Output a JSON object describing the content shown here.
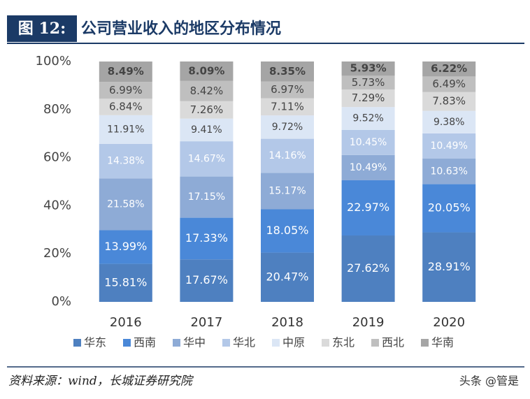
{
  "figure_label": "图 12:",
  "chart_data": {
    "type": "stacked_bar",
    "title": "公司营业收入的地区分布情况",
    "categories": [
      "2016",
      "2017",
      "2018",
      "2019",
      "2020"
    ],
    "series": [
      {
        "name": "华东",
        "color": "#4e80c0",
        "values": [
          15.81,
          17.67,
          20.47,
          27.62,
          28.91
        ],
        "value_labels": [
          "15.81%",
          "17.67%",
          "20.47%",
          "27.62%",
          "28.91%"
        ]
      },
      {
        "name": "西南",
        "color": "#4a88d8",
        "values": [
          13.99,
          17.33,
          18.05,
          22.97,
          20.05
        ],
        "value_labels": [
          "13.99%",
          "17.33%",
          "18.05%",
          "22.97%",
          "20.05%"
        ]
      },
      {
        "name": "华中",
        "color": "#8eabd6",
        "values": [
          21.58,
          17.15,
          15.17,
          10.49,
          10.63
        ],
        "value_labels": [
          "21.58%",
          "17.15%",
          "15.17%",
          "10.49%",
          "10.63%"
        ]
      },
      {
        "name": "华北",
        "color": "#b3c8e8",
        "values": [
          14.38,
          14.67,
          14.16,
          10.45,
          10.49
        ],
        "value_labels": [
          "14.38%",
          "14.67%",
          "14.16%",
          "10.45%",
          "10.49%"
        ]
      },
      {
        "name": "中原",
        "color": "#dbe6f5",
        "values": [
          11.91,
          9.41,
          9.72,
          9.52,
          9.38
        ],
        "value_labels": [
          "11.91%",
          "9.41%",
          "9.72%",
          "9.52%",
          "9.38%"
        ]
      },
      {
        "name": "东北",
        "color": "#dadada",
        "values": [
          6.84,
          7.26,
          7.11,
          7.29,
          7.83
        ],
        "value_labels": [
          "6.84%",
          "7.26%",
          "7.11%",
          "7.29%",
          "7.83%"
        ]
      },
      {
        "name": "西北",
        "color": "#bfbfbf",
        "values": [
          6.99,
          8.42,
          6.97,
          5.73,
          6.49
        ],
        "value_labels": [
          "6.99%",
          "8.42%",
          "6.97%",
          "5.73%",
          "6.49%"
        ]
      },
      {
        "name": "华南",
        "color": "#a5a5a5",
        "values": [
          8.49,
          8.09,
          8.35,
          5.93,
          6.22
        ],
        "value_labels": [
          "8.49%",
          "8.09%",
          "8.35%",
          "5.93%",
          "6.22%"
        ]
      }
    ],
    "ylim": [
      0,
      100
    ],
    "yticks": [
      {
        "value": 0,
        "label": "0%"
      },
      {
        "value": 20,
        "label": "20%"
      },
      {
        "value": 40,
        "label": "40%"
      },
      {
        "value": 60,
        "label": "60%"
      },
      {
        "value": 80,
        "label": "80%"
      },
      {
        "value": 100,
        "label": "100%"
      }
    ],
    "legend": "bottom"
  },
  "footer": {
    "source": "资料来源：wind，长城证券研究院",
    "watermark": "头条 @管是"
  }
}
